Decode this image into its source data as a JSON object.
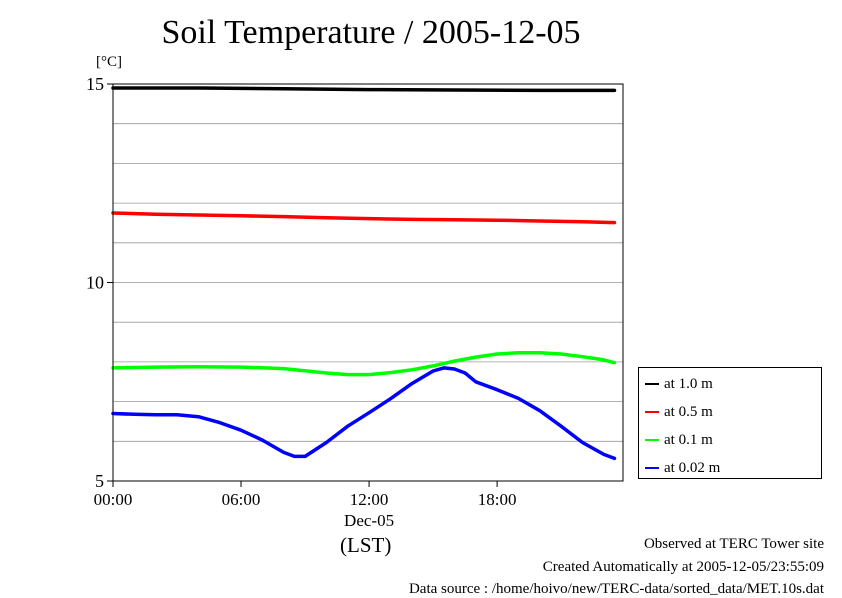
{
  "title": "Soil Temperature / 2005-12-05",
  "unit_label": "[°C]",
  "x_axis_label": "(LST)",
  "footer": {
    "line1": "Observed at TERC Tower site",
    "line2": "Created Automatically at 2005-12-05/23:55:09",
    "line3": "Data source : /home/hoivo/new/TERC-data/sorted_data/MET.10s.dat"
  },
  "chart_data": {
    "type": "line",
    "title": "Soil Temperature / 2005-12-05",
    "ylabel": "[°C]",
    "xlabel": "(LST)",
    "xlim": [
      0,
      23.9
    ],
    "ylim": [
      5,
      15
    ],
    "y_ticks": [
      5,
      10,
      15
    ],
    "x_ticks": [
      {
        "value": 0,
        "label": "00:00"
      },
      {
        "value": 6,
        "label": "06:00"
      },
      {
        "value": 12,
        "label": "12:00",
        "sublabel": "Dec-05"
      },
      {
        "value": 18,
        "label": "18:00"
      }
    ],
    "grid": true,
    "legend_position": "right",
    "series": [
      {
        "name": "at 1.0 m",
        "color": "#000000",
        "x": [
          0,
          4,
          8,
          12,
          16,
          20,
          23.5
        ],
        "y": [
          14.9,
          14.9,
          14.88,
          14.86,
          14.85,
          14.84,
          14.84
        ]
      },
      {
        "name": "at 0.5 m",
        "color": "#ff0000",
        "x": [
          0,
          2,
          4,
          6,
          8,
          10,
          12,
          14,
          16,
          18,
          20,
          22,
          23.5
        ],
        "y": [
          11.75,
          11.72,
          11.7,
          11.68,
          11.66,
          11.63,
          11.61,
          11.59,
          11.58,
          11.57,
          11.55,
          11.53,
          11.51
        ]
      },
      {
        "name": "at 0.1 m",
        "color": "#00ff00",
        "x": [
          0,
          2,
          4,
          6,
          8,
          10,
          11,
          12,
          13,
          14,
          15,
          16,
          17,
          18,
          19,
          20,
          21,
          22,
          23,
          23.5
        ],
        "y": [
          7.85,
          7.87,
          7.88,
          7.87,
          7.83,
          7.72,
          7.68,
          7.68,
          7.73,
          7.8,
          7.9,
          8.02,
          8.12,
          8.2,
          8.23,
          8.23,
          8.2,
          8.13,
          8.05,
          7.98
        ]
      },
      {
        "name": "at 0.02 m",
        "color": "#0000ff",
        "x": [
          0,
          1,
          2,
          3,
          4,
          5,
          6,
          7,
          8,
          8.5,
          9,
          10,
          11,
          12,
          13,
          14,
          15,
          15.5,
          16,
          16.5,
          17,
          18,
          19,
          20,
          21,
          22,
          23,
          23.5
        ],
        "y": [
          6.7,
          6.68,
          6.67,
          6.67,
          6.62,
          6.47,
          6.28,
          6.03,
          5.72,
          5.62,
          5.62,
          5.97,
          6.38,
          6.72,
          7.07,
          7.45,
          7.77,
          7.85,
          7.82,
          7.72,
          7.5,
          7.3,
          7.08,
          6.77,
          6.38,
          5.97,
          5.67,
          5.57
        ]
      }
    ]
  }
}
